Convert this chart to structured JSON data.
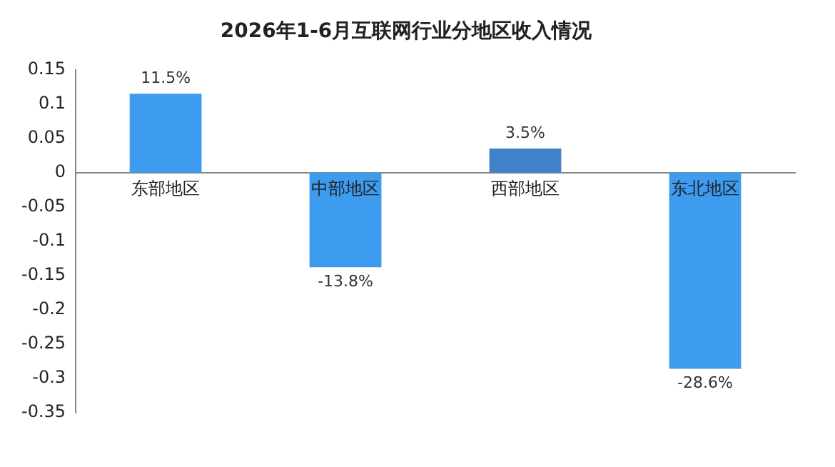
{
  "chart_data": {
    "type": "bar",
    "title": "2026年1-6月互联网行业分地区收入情况",
    "categories": [
      "东部地区",
      "中部地区",
      "西部地区",
      "东北地区"
    ],
    "values": [
      0.115,
      -0.138,
      0.035,
      -0.286
    ],
    "colors": [
      "#3d9bf0",
      "#3d9bf0",
      "#3f82c9",
      "#3d9bf0"
    ],
    "value_labels": [
      "11.5%",
      "-13.8%",
      "3.5%",
      "-28.6%"
    ],
    "ylim": [
      -0.35,
      0.15
    ],
    "yticks": [
      -0.35,
      -0.3,
      -0.25,
      -0.2,
      -0.15,
      -0.1,
      -0.05,
      0,
      0.05,
      0.1,
      0.15
    ],
    "grid": false
  }
}
